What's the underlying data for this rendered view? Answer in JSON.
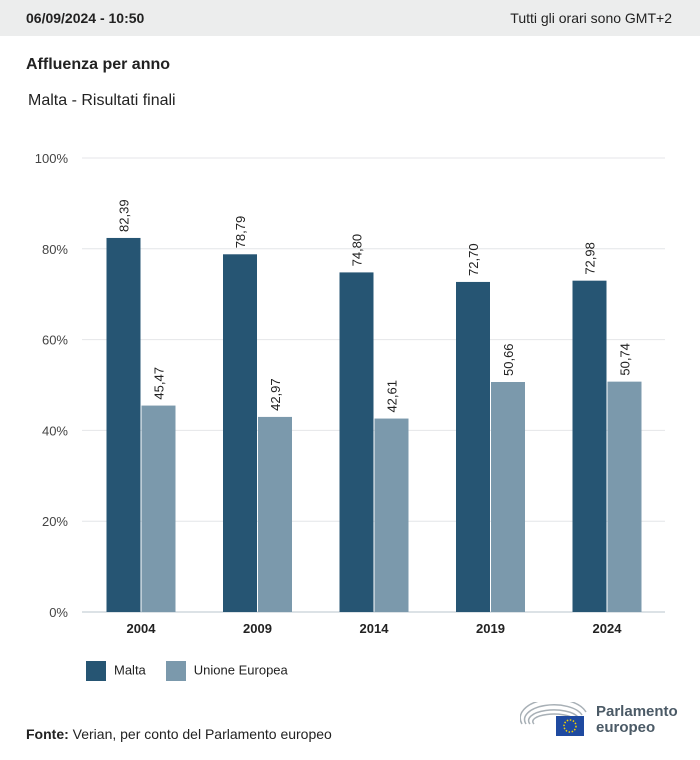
{
  "header": {
    "datetime": "06/09/2024 - 10:50",
    "timezone_note": "Tutti gli orari sono GMT+2"
  },
  "title": "Affluenza per anno",
  "subtitle": "Malta - Risultati finali",
  "source": {
    "label": "Fonte:",
    "text": " Verian, per conto del Parlamento europeo"
  },
  "logo": {
    "line1": "Parlamento",
    "line2": "europeo"
  },
  "chart_data": {
    "type": "bar",
    "categories": [
      "2004",
      "2009",
      "2014",
      "2019",
      "2024"
    ],
    "series": [
      {
        "name": "Malta",
        "color": "#265573",
        "values": [
          82.39,
          78.79,
          74.8,
          72.7,
          72.98
        ],
        "labels": [
          "82,39",
          "78,79",
          "74,80",
          "72,70",
          "72,98"
        ]
      },
      {
        "name": "Unione Europea",
        "color": "#7b99ac",
        "values": [
          45.47,
          42.97,
          42.61,
          50.66,
          50.74
        ],
        "labels": [
          "45,47",
          "42,97",
          "42,61",
          "50,66",
          "50,74"
        ]
      }
    ],
    "ylim": [
      0,
      100
    ],
    "yticks": [
      0,
      20,
      40,
      60,
      80,
      100
    ],
    "ytick_labels": [
      "0%",
      "20%",
      "40%",
      "60%",
      "80%",
      "100%"
    ],
    "grid": true,
    "legend": "bottom-left"
  }
}
